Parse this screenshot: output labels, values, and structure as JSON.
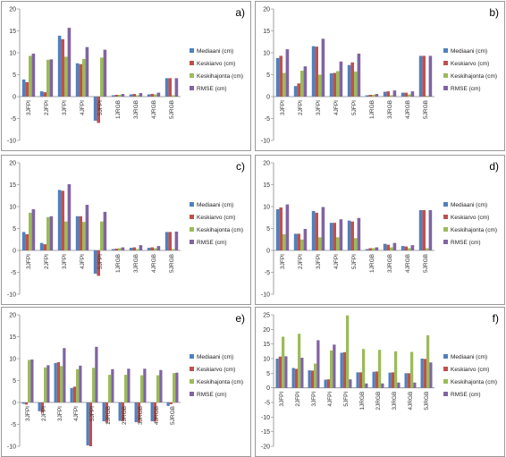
{
  "colors": {
    "Mediaani (cm)": "#4f81bd",
    "Keskiarvo (cm)": "#c0504d",
    "Keskihajonta (cm)": "#9bbb59",
    "RMSE (cm)": "#8064a2"
  },
  "chart_data": [
    {
      "type": "bar",
      "panel": "a)",
      "categories": [
        "3JFPI",
        "2JFPI",
        "3JFPI",
        "4JFPI",
        "5JFPI",
        "1JRGB",
        "3JRGB",
        "4JRGB",
        "5JRGB"
      ],
      "ylim": [
        -10,
        20
      ],
      "yticks": [
        -10,
        -5,
        0,
        5,
        10,
        15,
        20
      ],
      "grid": false,
      "legend": "right",
      "series": [
        {
          "name": "Mediaani (cm)",
          "values": [
            3.9,
            1.2,
            13.9,
            7.6,
            -5.5,
            0.3,
            0.5,
            0.5,
            4.2
          ]
        },
        {
          "name": "Keskiarvo (cm)",
          "values": [
            3.3,
            1.0,
            13.1,
            7.4,
            -6.0,
            0.4,
            0.6,
            0.6,
            4.2
          ]
        },
        {
          "name": "Keskihajonta (cm)",
          "values": [
            9.3,
            8.4,
            9.1,
            8.6,
            8.9,
            0.4,
            0.3,
            0.5,
            0.3
          ]
        },
        {
          "name": "RMSE (cm)",
          "values": [
            9.8,
            8.5,
            15.7,
            11.3,
            10.7,
            0.6,
            0.8,
            0.9,
            4.2
          ]
        }
      ]
    },
    {
      "type": "bar",
      "panel": "b)",
      "categories": [
        "3JFPI",
        "2JFPI",
        "3JFPI",
        "4JFPI",
        "5JFPI",
        "1JRGB",
        "3JRGB",
        "4JRGB",
        "5JRGB"
      ],
      "ylim": [
        -10,
        20
      ],
      "yticks": [
        -10,
        -5,
        0,
        5,
        10,
        15,
        20
      ],
      "grid": false,
      "legend": "right",
      "series": [
        {
          "name": "Mediaani (cm)",
          "values": [
            8.8,
            2.4,
            11.5,
            5.3,
            7.2,
            0.3,
            1.1,
            0.9,
            9.3
          ]
        },
        {
          "name": "Keskiarvo (cm)",
          "values": [
            9.3,
            3.0,
            11.4,
            5.4,
            7.8,
            0.4,
            1.2,
            0.9,
            9.3
          ]
        },
        {
          "name": "Keskihajonta (cm)",
          "values": [
            5.4,
            5.9,
            5.0,
            5.8,
            5.7,
            0.4,
            0.3,
            0.5,
            0.2
          ]
        },
        {
          "name": "RMSE (cm)",
          "values": [
            10.8,
            6.9,
            13.2,
            8.0,
            9.8,
            0.6,
            1.4,
            1.2,
            9.3
          ]
        }
      ]
    },
    {
      "type": "bar",
      "panel": "c)",
      "categories": [
        "3JFPI",
        "2JFPI",
        "3JFPI",
        "4JFPI",
        "5JFPI",
        "1JRGB",
        "3JRGB",
        "4JRGB",
        "5JRGB"
      ],
      "ylim": [
        -10,
        20
      ],
      "yticks": [
        -10,
        -5,
        0,
        5,
        10,
        15,
        20
      ],
      "grid": false,
      "legend": "right",
      "series": [
        {
          "name": "Mediaani (cm)",
          "values": [
            4.2,
            1.7,
            13.8,
            7.8,
            -5.3,
            0.3,
            0.6,
            0.6,
            4.2
          ]
        },
        {
          "name": "Keskiarvo (cm)",
          "values": [
            3.7,
            1.4,
            13.6,
            7.8,
            -5.8,
            0.4,
            0.7,
            0.7,
            4.2
          ]
        },
        {
          "name": "Keskihajonta (cm)",
          "values": [
            8.6,
            7.6,
            6.6,
            6.5,
            6.6,
            0.5,
            0.3,
            0.5,
            0.3
          ]
        },
        {
          "name": "RMSE (cm)",
          "values": [
            9.4,
            7.8,
            15.1,
            10.4,
            8.8,
            0.7,
            1.2,
            1.0,
            4.3
          ]
        }
      ]
    },
    {
      "type": "bar",
      "panel": "d)",
      "categories": [
        "3JFPI",
        "2JFPI",
        "3JFPI",
        "4JFPI",
        "5JFPI",
        "1JRGB",
        "3JRGB",
        "4JRGB",
        "5JRGB"
      ],
      "ylim": [
        -10,
        20
      ],
      "yticks": [
        -10,
        -5,
        0,
        5,
        10,
        15,
        20
      ],
      "grid": false,
      "legend": "right",
      "series": [
        {
          "name": "Mediaani (cm)",
          "values": [
            9.4,
            3.8,
            9.0,
            6.3,
            6.8,
            0.3,
            1.5,
            1.0,
            9.2
          ]
        },
        {
          "name": "Keskiarvo (cm)",
          "values": [
            9.8,
            3.8,
            8.6,
            6.3,
            6.6,
            0.5,
            1.3,
            0.9,
            9.2
          ]
        },
        {
          "name": "Keskihajonta (cm)",
          "values": [
            3.7,
            2.5,
            3.0,
            3.0,
            2.8,
            0.5,
            0.7,
            0.5,
            0.5
          ]
        },
        {
          "name": "RMSE (cm)",
          "values": [
            10.5,
            4.9,
            9.9,
            7.1,
            7.4,
            0.7,
            1.7,
            1.2,
            9.2
          ]
        }
      ]
    },
    {
      "type": "bar",
      "panel": "e)",
      "categories": [
        "3JFPI",
        "2JFPI",
        "3JFPI",
        "4JFPI",
        "5JFPI",
        "1JRGB",
        "2JRGB",
        "3JRGB",
        "4JRGB",
        "5JRGB"
      ],
      "ylim": [
        -10,
        20
      ],
      "yticks": [
        -10,
        -5,
        0,
        5,
        10,
        15,
        20
      ],
      "grid": false,
      "legend": "right",
      "series": [
        {
          "name": "Mediaani (cm)",
          "values": [
            -0.3,
            -2.0,
            9.0,
            3.3,
            -9.8,
            -4.3,
            -4.2,
            -4.5,
            -4.3,
            -0.8
          ]
        },
        {
          "name": "Keskiarvo (cm)",
          "values": [
            -0.5,
            -2.3,
            9.2,
            3.6,
            -10.0,
            -4.6,
            -4.3,
            -4.6,
            -4.4,
            -0.4
          ]
        },
        {
          "name": "Keskihajonta (cm)",
          "values": [
            9.7,
            8.0,
            8.3,
            7.6,
            7.9,
            6.3,
            6.3,
            6.2,
            6.2,
            6.7
          ]
        },
        {
          "name": "RMSE (cm)",
          "values": [
            9.8,
            8.5,
            12.4,
            8.4,
            12.7,
            7.6,
            7.7,
            7.7,
            7.4,
            6.8
          ]
        }
      ]
    },
    {
      "type": "bar",
      "panel": "f)",
      "categories": [
        "3JFPI",
        "2JFPI",
        "3JFPI",
        "4JFPI",
        "5JFPI",
        "1JRGB",
        "2JRGB",
        "3JRGB",
        "4JRGB",
        "5JRGB"
      ],
      "ylim": [
        -20,
        25
      ],
      "yticks": [
        -20,
        -15,
        -10,
        -5,
        0,
        5,
        10,
        15,
        20,
        25
      ],
      "grid": false,
      "legend": "right",
      "series": [
        {
          "name": "Mediaani (cm)",
          "values": [
            10.0,
            6.8,
            6.0,
            2.8,
            12.0,
            5.3,
            5.5,
            5.2,
            5.0,
            10.0
          ]
        },
        {
          "name": "Keskiarvo (cm)",
          "values": [
            10.7,
            6.5,
            5.9,
            2.9,
            12.2,
            5.3,
            5.6,
            5.3,
            5.0,
            9.9
          ]
        },
        {
          "name": "Keskihajonta (cm)",
          "values": [
            17.5,
            18.5,
            8.3,
            12.8,
            24.8,
            13.3,
            13.0,
            12.5,
            12.3,
            18.0
          ]
        },
        {
          "name": "RMSE (cm)",
          "values": [
            10.8,
            10.3,
            16.3,
            14.8,
            2.9,
            1.5,
            1.5,
            1.8,
            1.8,
            8.7
          ]
        }
      ]
    }
  ]
}
